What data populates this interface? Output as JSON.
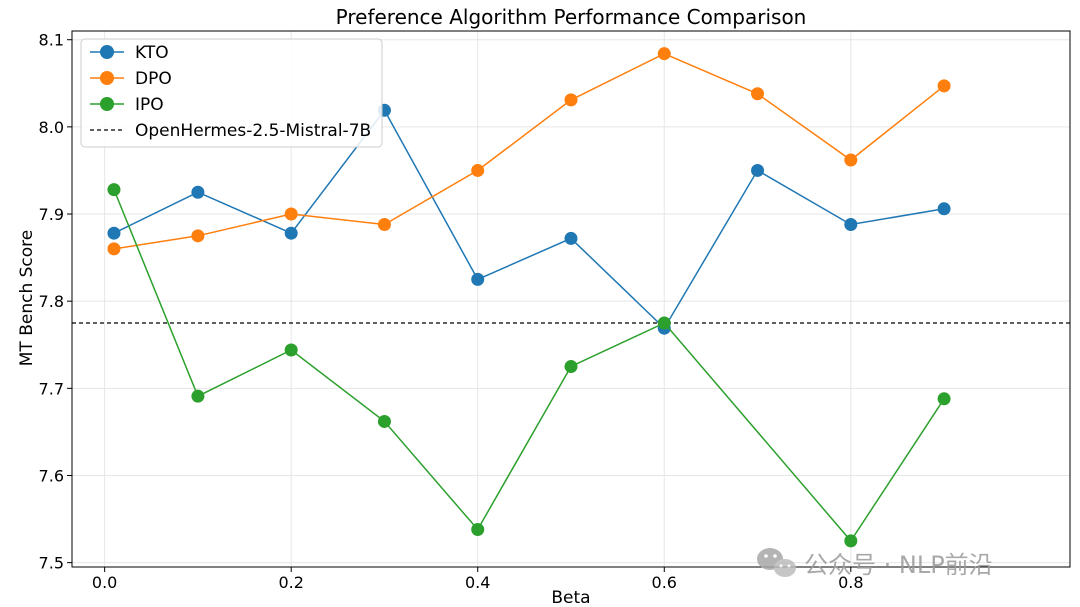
{
  "chart_data": {
    "type": "line",
    "title": "Preference Algorithm Performance Comparison",
    "xlabel": "Beta",
    "ylabel": "MT Bench Score",
    "xlim": [
      -0.035,
      1.035
    ],
    "ylim": [
      7.495,
      8.11
    ],
    "xticks": [
      0.0,
      0.2,
      0.4,
      0.6,
      0.8
    ],
    "xtick_labels": [
      "0.0",
      "0.2",
      "0.4",
      "0.6",
      "0.8"
    ],
    "yticks": [
      7.5,
      7.6,
      7.7,
      7.8,
      7.9,
      8.0,
      8.1
    ],
    "ytick_labels": [
      "7.5",
      "7.6",
      "7.7",
      "7.8",
      "7.9",
      "8.0",
      "8.1"
    ],
    "grid": true,
    "legend_position": "top-left",
    "x": [
      0.01,
      0.1,
      0.2,
      0.3,
      0.4,
      0.5,
      0.6,
      0.7,
      0.8,
      0.9
    ],
    "series": [
      {
        "name": "KTO",
        "color": "#1f77b4",
        "values": [
          7.878,
          7.925,
          7.878,
          8.019,
          7.825,
          7.872,
          7.769,
          7.95,
          7.888,
          7.906
        ]
      },
      {
        "name": "DPO",
        "color": "#ff7f0e",
        "values": [
          7.86,
          7.875,
          7.9,
          7.888,
          7.95,
          8.031,
          8.084,
          8.038,
          7.962,
          8.047
        ]
      },
      {
        "name": "IPO",
        "color": "#2ca02c",
        "values": [
          7.928,
          7.691,
          7.744,
          7.662,
          7.538,
          7.725,
          7.775,
          null,
          7.525,
          7.688
        ]
      }
    ],
    "reference_line": {
      "name": "OpenHermes-2.5-Mistral-7B",
      "y": 7.775,
      "color": "#000000",
      "style": "dashed"
    }
  },
  "watermark": {
    "text": "公众号 · NLP前沿",
    "icon": "wechat-icon"
  }
}
